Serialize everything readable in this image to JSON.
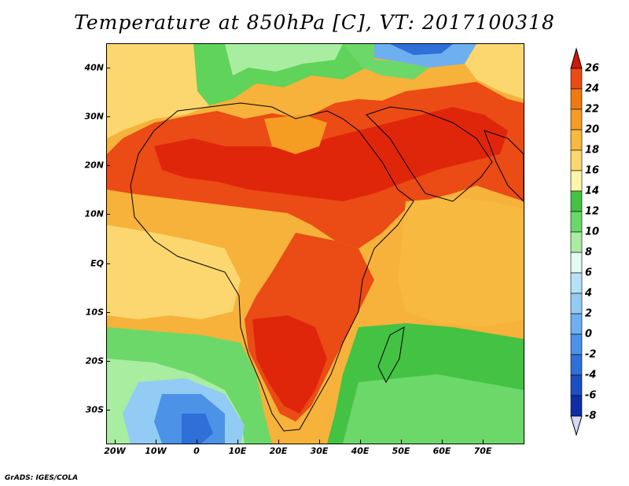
{
  "title": "Temperature at 850hPa [C], VT: 2017100318",
  "credit": "GrADS: IGES/COLA",
  "lat_labels": [
    "40N",
    "30N",
    "20N",
    "10N",
    "EQ",
    "10S",
    "20S",
    "30S"
  ],
  "lon_labels": [
    "20W",
    "10W",
    "0",
    "10E",
    "20E",
    "30E",
    "40E",
    "50E",
    "60E",
    "70E"
  ],
  "colorbar": {
    "labels": [
      "26",
      "24",
      "22",
      "20",
      "18",
      "16",
      "14",
      "12",
      "10",
      "8",
      "6",
      "4",
      "2",
      "0",
      "-2",
      "-4",
      "-6",
      "-8"
    ],
    "colors_top_to_bottom": [
      "#e0260a",
      "#eb4b14",
      "#f07a12",
      "#f59d22",
      "#f8b940",
      "#fcd770",
      "#fdf5a8",
      "#44c244",
      "#6cd86a",
      "#a8eda0",
      "#e2fbf0",
      "#b6e2f8",
      "#92cbf4",
      "#6eb0ef",
      "#4c92e6",
      "#2f6fd8",
      "#1b4fc4",
      "#0e2ea8",
      "#141c7a"
    ],
    "over_color": "#d01808",
    "under_color": "#d8d8f8"
  },
  "map": {
    "domain": "Africa, Arabian Peninsula and western Indian Ocean",
    "lon_range": [
      -22,
      80
    ],
    "lat_range": [
      -37,
      45
    ],
    "variable": "850 hPa air temperature",
    "units": "C",
    "regions": [
      {
        "name": "Sahara & Sahel band",
        "temp_c": 24
      },
      {
        "name": "Arabian Peninsula",
        "temp_c": 24
      },
      {
        "name": "Southern African plateau",
        "temp_c": 24
      },
      {
        "name": "Mediterranean",
        "temp_c": 12
      },
      {
        "name": "Southern Indian Ocean",
        "temp_c": 12
      },
      {
        "name": "South Atlantic (southwest)",
        "temp_c": 4
      },
      {
        "name": "Tropical Atlantic",
        "temp_c": 18
      },
      {
        "name": "Arabian Sea / Indian Ocean",
        "temp_c": 18
      }
    ]
  }
}
